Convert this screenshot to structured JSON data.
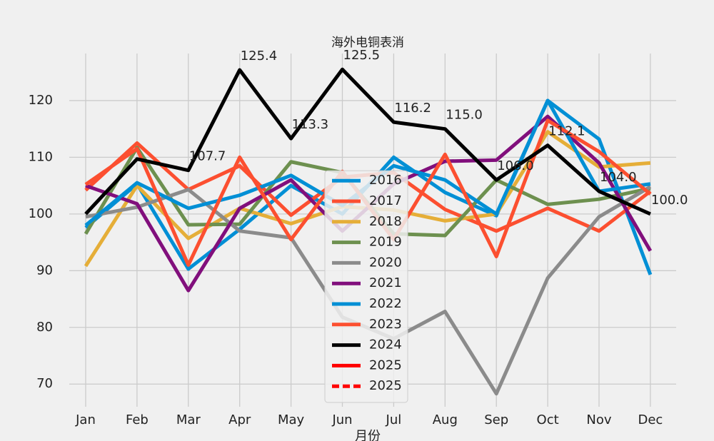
{
  "chart_data": {
    "type": "line",
    "title": "海外电铜表消",
    "x_label": "月份",
    "categories": [
      "Jan",
      "Feb",
      "Mar",
      "Apr",
      "May",
      "Jun",
      "Jul",
      "Aug",
      "Sep",
      "Oct",
      "Nov",
      "Dec"
    ],
    "ylim": [
      66,
      128.3
    ],
    "yticks": [
      70,
      80,
      90,
      100,
      110,
      120
    ],
    "grid": true,
    "legend": "lower center",
    "series": [
      {
        "name": "2016",
        "color": "#008fd5",
        "values": [
          97.6,
          105.3,
          90.3,
          97.3,
          105.0,
          100.0,
          110.0,
          103.8,
          99.7,
          120.0,
          113.2,
          89.3
        ]
      },
      {
        "name": "2017",
        "color": "#fc4f30",
        "values": [
          104.2,
          112.5,
          104.3,
          108.5,
          99.8,
          106.5,
          107.3,
          100.8,
          97.0,
          101.0,
          97.0,
          104.0
        ]
      },
      {
        "name": "2018",
        "color": "#e5ae38",
        "values": [
          90.8,
          105.0,
          95.7,
          101.0,
          98.3,
          101.3,
          100.7,
          98.8,
          100.0,
          114.5,
          108.3,
          109.0
        ]
      },
      {
        "name": "2019",
        "color": "#6d904f",
        "values": [
          96.5,
          111.7,
          98.1,
          98.2,
          109.2,
          107.3,
          96.5,
          96.2,
          106.0,
          101.7,
          102.6,
          104.5
        ]
      },
      {
        "name": "2020",
        "color": "#8b8b8b",
        "values": [
          99.5,
          101.2,
          104.3,
          97.0,
          95.8,
          81.8,
          78.0,
          82.8,
          68.3,
          88.7,
          99.5,
          104.8
        ]
      },
      {
        "name": "2021",
        "color": "#810f7c",
        "values": [
          105.0,
          101.8,
          86.5,
          101.0,
          106.0,
          97.0,
          105.3,
          109.3,
          109.5,
          117.2,
          109.0,
          93.5
        ]
      },
      {
        "name": "2022",
        "color": "#008fd5",
        "values": [
          98.0,
          105.5,
          101.0,
          103.3,
          106.8,
          101.5,
          108.5,
          106.0,
          100.0,
          120.0,
          104.0,
          105.3
        ]
      },
      {
        "name": "2023",
        "color": "#fc4f30",
        "values": [
          105.2,
          111.5,
          91.0,
          110.0,
          95.5,
          107.5,
          95.5,
          110.5,
          92.5,
          116.5,
          111.0,
          103.5
        ]
      },
      {
        "name": "2024",
        "color": "#000000",
        "values": [
          100.0,
          109.7,
          107.7,
          125.4,
          113.3,
          125.5,
          116.2,
          115.0,
          106.0,
          112.1,
          104.0,
          100.0
        ],
        "value_labels": [
          null,
          null,
          "107.7",
          "125.4",
          "113.3",
          "125.5",
          "116.2",
          "115.0",
          "106.0",
          "112.1",
          "104.0",
          "100.0"
        ]
      },
      {
        "name": "2025",
        "color": "#ff0000",
        "linestyle": "solid",
        "values": [
          null,
          null,
          null,
          null,
          null,
          null,
          null,
          null,
          null,
          null,
          null,
          null
        ]
      },
      {
        "name": "2025",
        "color": "#ff0000",
        "linestyle": "dashed",
        "values": [
          null,
          null,
          null,
          null,
          null,
          null,
          null,
          null,
          null,
          null,
          null,
          null
        ]
      }
    ]
  }
}
